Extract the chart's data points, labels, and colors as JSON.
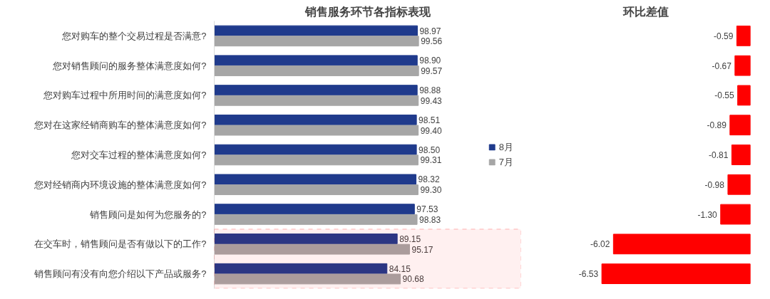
{
  "chart_data": [
    {
      "type": "bar",
      "orientation": "horizontal",
      "title": "销售服务环节各指标表现",
      "categories": [
        "您对购车的整个交易过程是否满意?",
        "您对销售顾问的服务整体满意度如何?",
        "您对购车过程中所用时间的满意度如何?",
        "您对在这家经销商购车的整体满意度如何?",
        "您对交车过程的整体满意度如何?",
        "您对经销商内环境设施的整体满意度如何?",
        "销售顾问是如何为您服务的?",
        "在交车时，销售顾问是否有做以下的工作?",
        "销售顾问有没有向您介绍以下产品或服务?"
      ],
      "series": [
        {
          "name": "8月",
          "color": "#1f3a8c",
          "values": [
            98.97,
            98.9,
            98.88,
            98.51,
            98.5,
            98.32,
            97.53,
            89.15,
            84.15
          ],
          "value_labels": [
            "98.97",
            "98.90",
            "98.88",
            "98.51",
            "98.50",
            "98.32",
            "97.53",
            "89.15",
            "84.15"
          ]
        },
        {
          "name": "7月",
          "color": "#a6a6a6",
          "values": [
            99.56,
            99.57,
            99.43,
            99.4,
            99.31,
            99.3,
            98.83,
            95.17,
            90.68
          ],
          "value_labels": [
            "99.56",
            "99.57",
            "99.43",
            "99.40",
            "99.31",
            "99.30",
            "98.83",
            "95.17",
            "90.68"
          ]
        }
      ],
      "legend": "right",
      "tick_labels": "y",
      "grid": false,
      "bands": [
        {
          "axis": "y",
          "from": "在交车时，销售顾问是否有做以下的工作?",
          "to": "销售顾问有没有向您介绍以下产品或服务?",
          "label": null,
          "color": "#ff0000"
        }
      ]
    },
    {
      "type": "bar",
      "orientation": "horizontal",
      "title": "环比差值",
      "categories": [
        null,
        null,
        null,
        null,
        null,
        null,
        null,
        null,
        null
      ],
      "values": [
        -0.59,
        -0.67,
        -0.55,
        -0.89,
        -0.81,
        -0.98,
        -1.3,
        -6.02,
        -6.53
      ],
      "color": "#ff0000",
      "value_labels": [
        "-0.59",
        "-0.67",
        "-0.55",
        "-0.89",
        "-0.81",
        "-0.98",
        "-1.30",
        "-6.02",
        "-6.53"
      ],
      "tick_labels": false,
      "grid": false
    }
  ]
}
